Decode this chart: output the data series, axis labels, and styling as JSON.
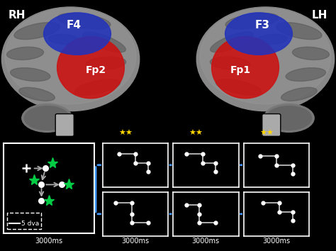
{
  "background_color": "#000000",
  "brain_bg": "#111111",
  "rh_label": "RH",
  "lh_label": "LH",
  "f4_label": "F4",
  "f3_label": "F3",
  "fp2_label": "Fp2",
  "fp1_label": "Fp1",
  "time_labels": [
    "3000ms",
    "3000ms",
    "3000ms",
    "3000ms"
  ],
  "dva_label": "5 dva",
  "star_color": "#FFD700",
  "green_star_color": "#00CC44",
  "blue_line_color": "#4499FF",
  "red_area_color": "#CC1111",
  "blue_area_color": "#2233BB",
  "brain_color": "#888888",
  "gyri_color": "#555555",
  "stem_color": "#aaaaaa"
}
